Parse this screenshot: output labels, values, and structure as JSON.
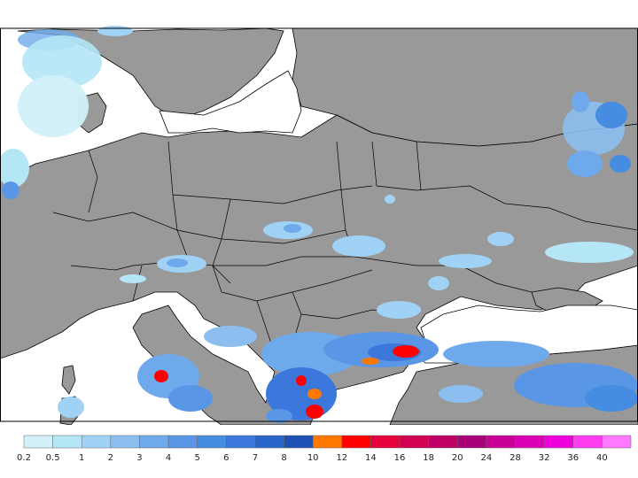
{
  "map": {
    "region": "Central and Eastern Europe",
    "land_color": "#999999",
    "sea_color": "#ffffff",
    "border_color": "#000000"
  },
  "legend": {
    "thresholds": [
      "0.2",
      "0.5",
      "1",
      "2",
      "3",
      "4",
      "5",
      "6",
      "7",
      "8",
      "10",
      "12",
      "14",
      "16",
      "18",
      "20",
      "24",
      "28",
      "32",
      "36",
      "40"
    ],
    "colors": [
      "#d2f0fa",
      "#b4e6f5",
      "#a0d2f5",
      "#8cbef0",
      "#6eaaeb",
      "#5a96e6",
      "#468ce1",
      "#3c78dc",
      "#2864c8",
      "#1e50b4",
      "#ff7800",
      "#ff0000",
      "#e6003c",
      "#d20050",
      "#be0064",
      "#aa0078",
      "#c80096",
      "#dc00b4",
      "#f000dc",
      "#ff3cf0",
      "#ff78ff"
    ]
  }
}
